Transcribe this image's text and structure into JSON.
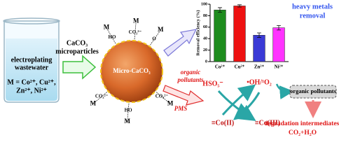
{
  "beaker": {
    "line1": "electroplating",
    "line2": "wastewater",
    "metals1": "M = Co²⁺, Cu²⁺,",
    "metals2": "Zn²⁺, Ni²⁺"
  },
  "reagent": {
    "line1": "CaCO₃",
    "line2": "microparticles"
  },
  "particle": {
    "label": "Micro-CaCO₃",
    "ligands": [
      {
        "metal": "M",
        "group": "HO"
      },
      {
        "metal": "M",
        "group": "CO₃²⁻"
      },
      {
        "metal": "M",
        "group": "O"
      },
      {
        "metal": "M",
        "group": "CO₃²⁻"
      },
      {
        "metal": "M",
        "group": "HO"
      },
      {
        "metal": "M",
        "group": "CO₃²⁻"
      }
    ]
  },
  "oxidant": {
    "line1": "organic",
    "line2": "pollutants",
    "pms": "PMS"
  },
  "cycle": {
    "hso5": "HSO₅⁻",
    "radicals": "•OH/¹O₂",
    "co2": "≡Co(II)",
    "co3": "≡Co(III)",
    "target": "organic pollutants",
    "product1": "degradation intermediates,",
    "product2": "CO₂+H₂O"
  },
  "chart_data": {
    "type": "bar",
    "ylabel": "Removal efficiency (%)",
    "annotation1": "heavy metals",
    "annotation2": "removal",
    "categories": [
      "Co²⁺",
      "Cu²⁺",
      "Zn²⁺",
      "Ni²⁺"
    ],
    "values": [
      90,
      97,
      46,
      59
    ],
    "errors": [
      4,
      2,
      4,
      4
    ],
    "colors": [
      "#1e8c1e",
      "#ee1111",
      "#3a3ad6",
      "#ff33ff"
    ],
    "ylim": [
      0,
      100
    ],
    "yticks": [
      0,
      20,
      40,
      60,
      80,
      100
    ]
  }
}
